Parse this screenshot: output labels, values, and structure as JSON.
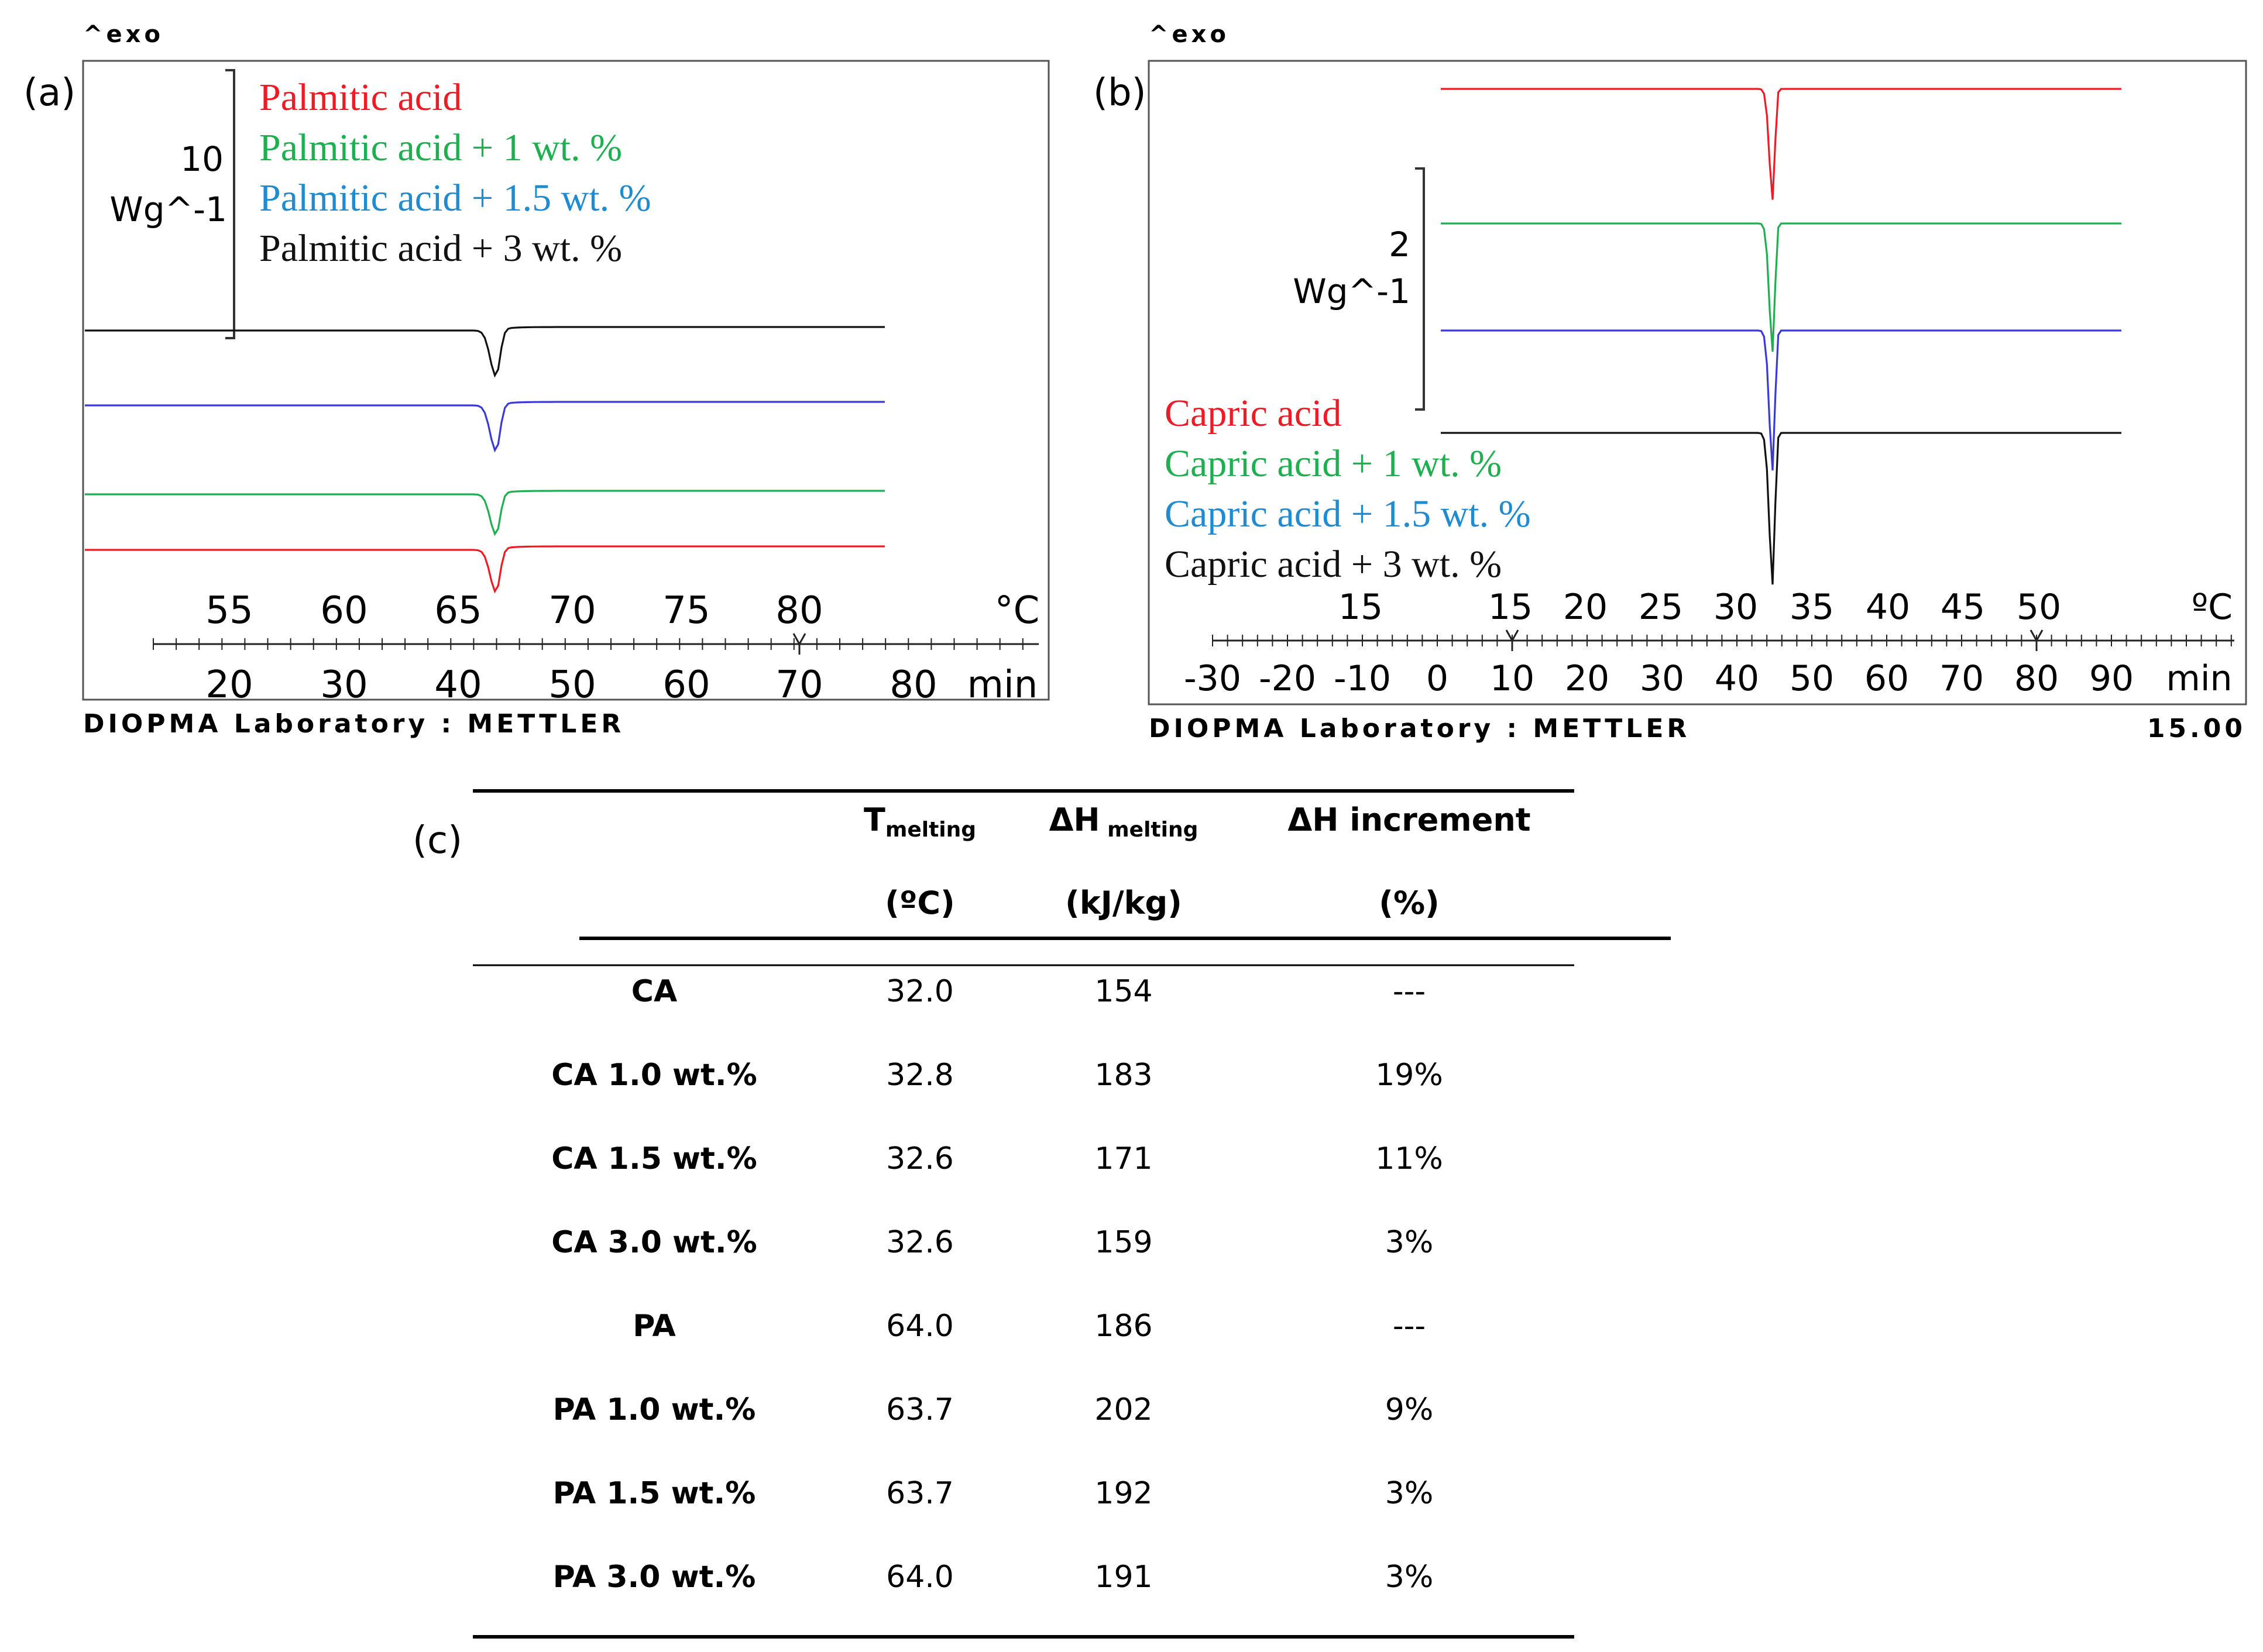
{
  "chart_data": [
    {
      "type": "line",
      "panel_label": "(a)",
      "exo_label": "^exo",
      "scale_bar": {
        "value": "10",
        "unit": "Wg^-1"
      },
      "series": [
        {
          "name": "Palmitic acid",
          "color": "#f01a24",
          "baseline": 0,
          "peak_x_min": 37.3,
          "peak_depth": 1.2
        },
        {
          "name": "Palmitic acid + 1 wt. %",
          "color": "#1eb050",
          "baseline": 1,
          "peak_x_min": 37.3,
          "peak_depth": 1.15
        },
        {
          "name": "Palmitic acid + 1.5 wt. %",
          "color": "#3a3ad8",
          "baseline": 2,
          "peak_x_min": 37.3,
          "peak_depth": 1.3
        },
        {
          "name": "Palmitic acid + 3 wt. %",
          "color": "#111111",
          "baseline": 3,
          "peak_x_min": 37.3,
          "peak_depth": 1.3
        }
      ],
      "legend_colors": [
        "#f01a24",
        "#1eb050",
        "#1f8bd1",
        "#111111"
      ],
      "temp_axis": {
        "unit": "°C",
        "ticks": [
          "55",
          "60",
          "65",
          "70",
          "75",
          "80"
        ]
      },
      "time_axis": {
        "unit": "min",
        "ticks": [
          "20",
          "30",
          "40",
          "50",
          "60",
          "70",
          "80"
        ]
      },
      "x_range_min": [
        14,
        80
      ],
      "footer": "DIOPMA Laboratory : METTLER"
    },
    {
      "type": "line",
      "panel_label": "(b)",
      "exo_label": "^exo",
      "scale_bar": {
        "value": "2",
        "unit": "Wg^-1"
      },
      "series": [
        {
          "name": "Capric acid",
          "color": "#f01a24",
          "baseline": 3,
          "peak_x_min": 44.8,
          "peak_depth": 0.95
        },
        {
          "name": "Capric acid + 1 wt. %",
          "color": "#1eb050",
          "baseline": 2,
          "peak_x_min": 44.8,
          "peak_depth": 1.1
        },
        {
          "name": "Capric acid + 1.5 wt. %",
          "color": "#3a3ad8",
          "baseline": 1,
          "peak_x_min": 44.8,
          "peak_depth": 1.2
        },
        {
          "name": "Capric acid + 3 wt. %",
          "color": "#111111",
          "baseline": 0,
          "peak_x_min": 44.8,
          "peak_depth": 1.3
        }
      ],
      "legend_colors": [
        "#f01a24",
        "#1eb050",
        "#1f8bd1",
        "#111111"
      ],
      "temp_axis": {
        "unit": "ºC",
        "ticks": [
          "15",
          "15",
          "20",
          "25",
          "30",
          "35",
          "40",
          "45",
          "50"
        ]
      },
      "time_axis": {
        "unit": "min",
        "ticks": [
          "-30",
          "-20",
          "-10",
          "0",
          "10",
          "20",
          "30",
          "40",
          "50",
          "60",
          "70",
          "80",
          "90"
        ]
      },
      "x_range_min": [
        -30,
        90
      ],
      "footer": "DIOPMA Laboratory : METTLER",
      "footer_right": "15.00"
    },
    {
      "type": "table",
      "panel_label": "(c)",
      "columns": [
        {
          "main": "T",
          "sub": "melting",
          "unit": "(ºC)"
        },
        {
          "main": "ΔH",
          "sub": " melting",
          "unit": "(kJ/kg)"
        },
        {
          "main": "ΔH increment",
          "sub": "",
          "unit": "(%)"
        }
      ],
      "rows": [
        {
          "label": "CA",
          "t": "32.0",
          "dh": "154",
          "inc": "---"
        },
        {
          "label": "CA 1.0 wt.%",
          "t": "32.8",
          "dh": "183",
          "inc": "19%"
        },
        {
          "label": "CA 1.5 wt.%",
          "t": "32.6",
          "dh": "171",
          "inc": "11%"
        },
        {
          "label": "CA 3.0 wt.%",
          "t": "32.6",
          "dh": "159",
          "inc": "3%"
        },
        {
          "label": "PA",
          "t": "64.0",
          "dh": "186",
          "inc": "---"
        },
        {
          "label": "PA 1.0 wt.%",
          "t": "63.7",
          "dh": "202",
          "inc": "9%"
        },
        {
          "label": "PA 1.5 wt.%",
          "t": "63.7",
          "dh": "192",
          "inc": "3%"
        },
        {
          "label": "PA 3.0 wt.%",
          "t": "64.0",
          "dh": "191",
          "inc": "3%"
        }
      ]
    }
  ]
}
